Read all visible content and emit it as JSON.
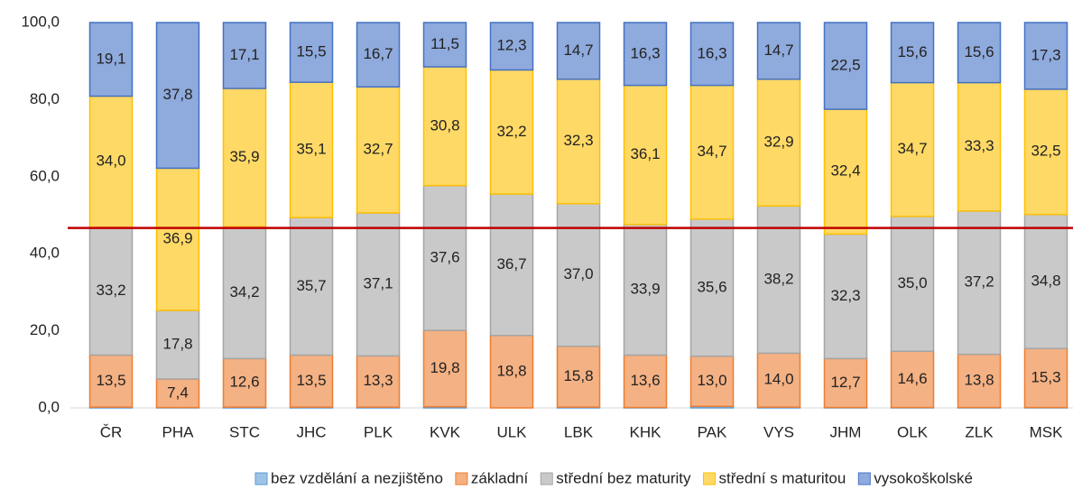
{
  "chart_data": {
    "type": "stacked_bar",
    "categories": [
      "ČR",
      "PHA",
      "STC",
      "JHC",
      "PLK",
      "KVK",
      "ULK",
      "LBK",
      "KHK",
      "PAK",
      "VYS",
      "JHM",
      "OLK",
      "ZLK",
      "MSK"
    ],
    "series": [
      {
        "name": "bez vzdělání a nezjištěno",
        "color": "#9dc3e6",
        "border": "#5b9bd5",
        "values": [
          0.2,
          0.1,
          0.2,
          0.2,
          0.2,
          0.3,
          0,
          0.2,
          0.1,
          0.4,
          0.2,
          0.1,
          0.1,
          0.1,
          0.1
        ]
      },
      {
        "name": "základní",
        "color": "#f4b183",
        "border": "#ed7d31",
        "values": [
          13.5,
          7.4,
          12.6,
          13.5,
          13.3,
          19.8,
          18.8,
          15.8,
          13.6,
          13.0,
          14.0,
          12.7,
          14.6,
          13.8,
          15.3
        ],
        "value_labels": [
          "13,5",
          "7,4",
          "12,6",
          "13,5",
          "13,3",
          "19,8",
          "18,8",
          "15,8",
          "13,6",
          "13,0",
          "14,0",
          "12,7",
          "14,6",
          "13,8",
          "15,3"
        ]
      },
      {
        "name": "střední bez maturity",
        "color": "#c9c9c9",
        "border": "#a5a5a5",
        "values": [
          33.2,
          17.8,
          34.2,
          35.7,
          37.1,
          37.6,
          36.7,
          37.0,
          33.9,
          35.6,
          38.2,
          32.3,
          35.0,
          37.2,
          34.8
        ],
        "value_labels": [
          "33,2",
          "17,8",
          "34,2",
          "35,7",
          "37,1",
          "37,6",
          "36,7",
          "37,0",
          "33,9",
          "35,6",
          "38,2",
          "32,3",
          "35,0",
          "37,2",
          "34,8"
        ]
      },
      {
        "name": "střední s maturitou",
        "color": "#ffd966",
        "border": "#ffc000",
        "values": [
          34.0,
          36.9,
          35.9,
          35.1,
          32.7,
          30.8,
          32.2,
          32.3,
          36.1,
          34.7,
          32.9,
          32.4,
          34.7,
          33.3,
          32.5
        ],
        "value_labels": [
          "34,0",
          "36,9",
          "35,9",
          "35,1",
          "32,7",
          "30,8",
          "32,2",
          "32,3",
          "36,1",
          "34,7",
          "32,9",
          "32,4",
          "34,7",
          "33,3",
          "32,5"
        ]
      },
      {
        "name": "vysokoškolské",
        "color": "#8faadc",
        "border": "#4472c4",
        "values": [
          19.1,
          37.8,
          17.1,
          15.5,
          16.7,
          11.5,
          12.3,
          14.7,
          16.3,
          16.3,
          14.7,
          22.5,
          15.6,
          15.6,
          17.3
        ],
        "value_labels": [
          "19,1",
          "37,8",
          "17,1",
          "15,5",
          "16,7",
          "11,5",
          "12,3",
          "14,7",
          "16,3",
          "16,3",
          "14,7",
          "22,5",
          "15,6",
          "15,6",
          "17,3"
        ]
      }
    ],
    "ylim": [
      0,
      100
    ],
    "yticks": [
      {
        "value": 0,
        "label": "0,0"
      },
      {
        "value": 20,
        "label": "20,0"
      },
      {
        "value": 40,
        "label": "40,0"
      },
      {
        "value": 60,
        "label": "60,0"
      },
      {
        "value": 80,
        "label": "80,0"
      },
      {
        "value": 100,
        "label": "100,0"
      }
    ],
    "reference_line": {
      "value": 46.7,
      "color": "#c00000"
    },
    "legend": "bottom"
  }
}
